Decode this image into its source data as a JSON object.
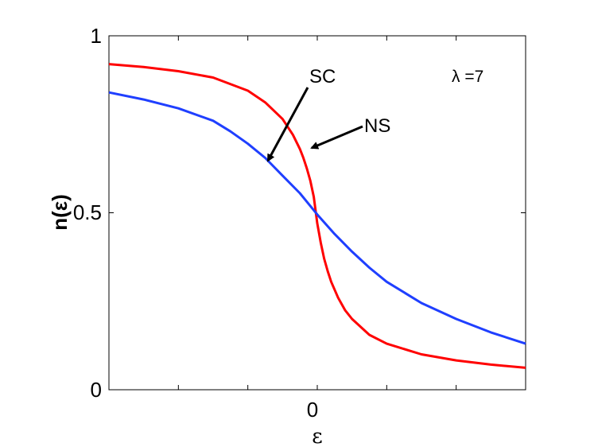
{
  "chart_data": {
    "type": "line",
    "title": "",
    "xlabel": "ε",
    "ylabel": "n(ε)",
    "xlim": [
      -3,
      3
    ],
    "ylim": [
      0,
      1
    ],
    "x_ticks": [
      0
    ],
    "x_tick_labels": [
      "0"
    ],
    "y_ticks": [
      0,
      0.5,
      1
    ],
    "y_tick_labels": [
      "0",
      "0.5",
      "1"
    ],
    "grid": false,
    "legend": "none",
    "parameter_label": "λ =7",
    "series": [
      {
        "name": "NS",
        "color": "#ff0000",
        "x": [
          -3.0,
          -2.5,
          -2.0,
          -1.5,
          -1.0,
          -0.75,
          -0.5,
          -0.35,
          -0.25,
          -0.2,
          -0.15,
          -0.1,
          -0.05,
          0.0,
          0.05,
          0.1,
          0.15,
          0.2,
          0.3,
          0.4,
          0.5,
          0.75,
          1.0,
          1.5,
          2.0,
          2.5,
          3.0
        ],
        "values": [
          0.92,
          0.912,
          0.9,
          0.882,
          0.845,
          0.812,
          0.765,
          0.72,
          0.68,
          0.655,
          0.625,
          0.59,
          0.545,
          0.47,
          0.415,
          0.37,
          0.335,
          0.305,
          0.26,
          0.225,
          0.2,
          0.155,
          0.13,
          0.1,
          0.083,
          0.071,
          0.062
        ]
      },
      {
        "name": "SC",
        "color": "#1f3fff",
        "x": [
          -3.0,
          -2.5,
          -2.0,
          -1.5,
          -1.25,
          -1.0,
          -0.75,
          -0.5,
          -0.25,
          0.0,
          0.25,
          0.5,
          0.75,
          1.0,
          1.5,
          2.0,
          2.5,
          3.0
        ],
        "values": [
          0.84,
          0.82,
          0.795,
          0.76,
          0.73,
          0.695,
          0.655,
          0.605,
          0.555,
          0.495,
          0.44,
          0.39,
          0.345,
          0.305,
          0.245,
          0.2,
          0.162,
          0.13
        ]
      }
    ],
    "annotations": [
      {
        "text": "SC",
        "points_to": [
          -0.7,
          0.65
        ]
      },
      {
        "text": "NS",
        "points_to": [
          -0.1,
          0.68
        ]
      }
    ]
  }
}
